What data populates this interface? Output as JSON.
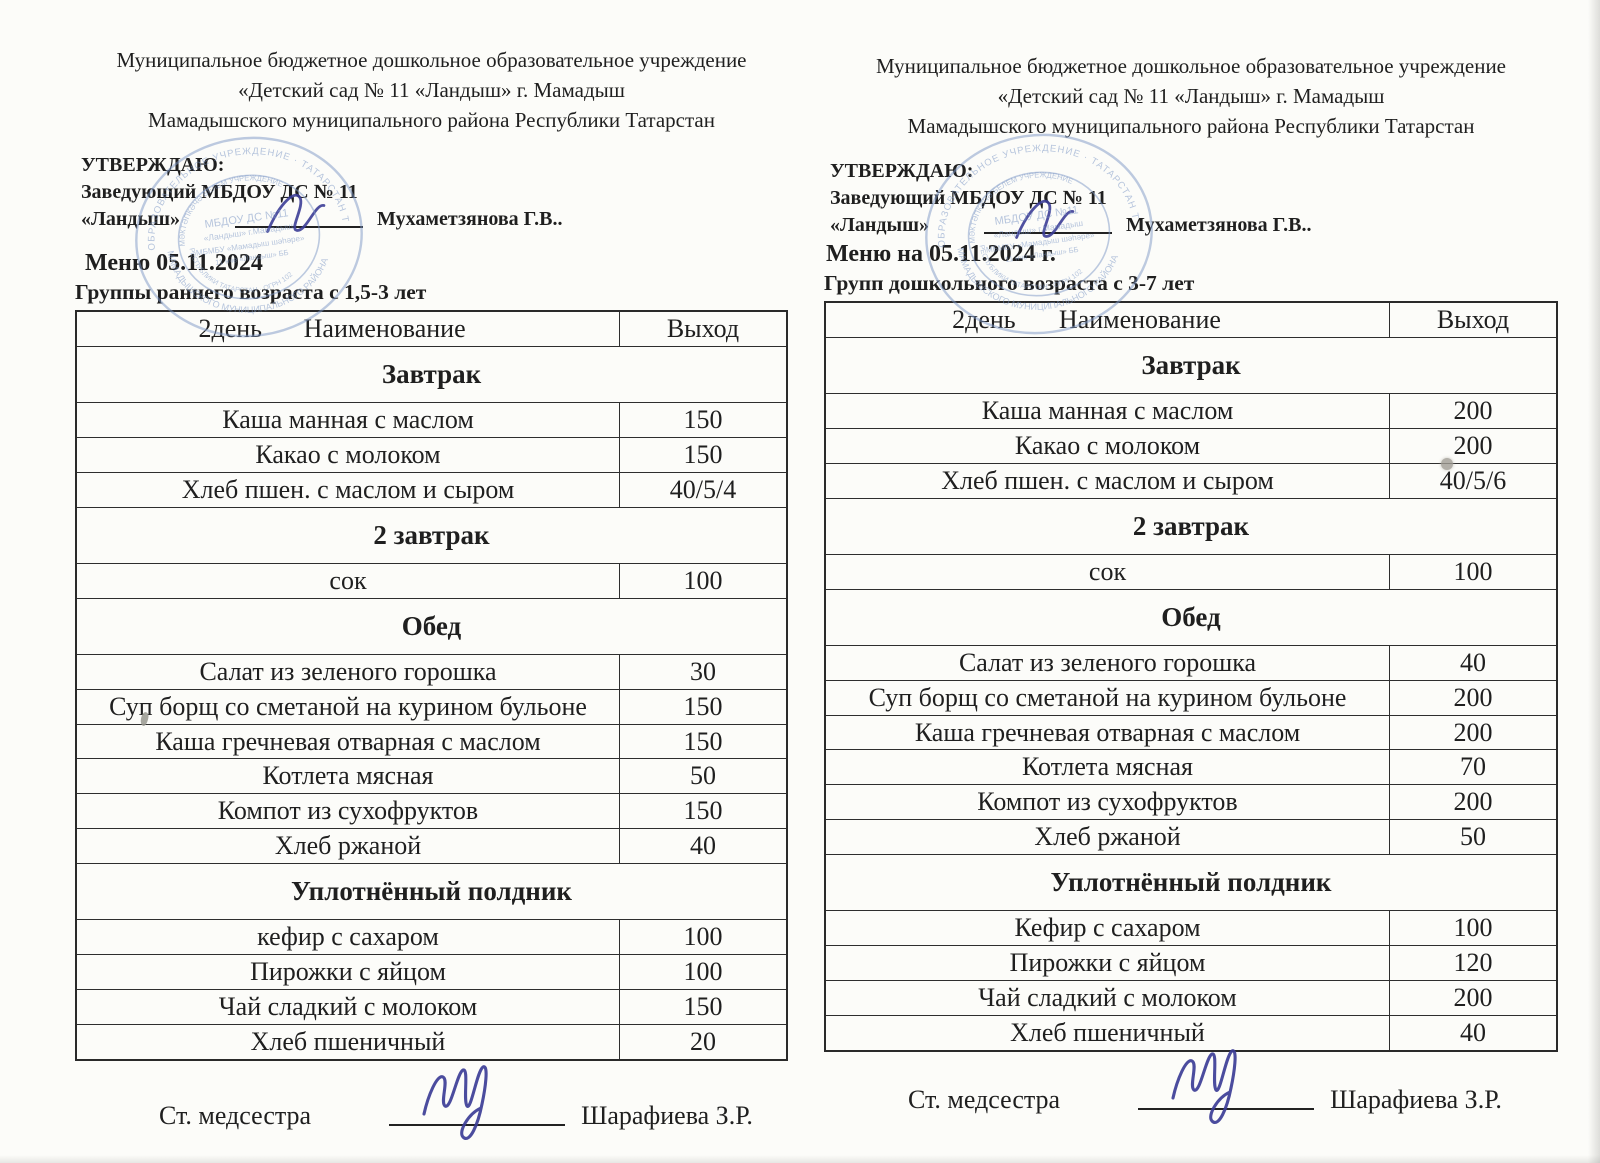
{
  "colors": {
    "ink": "#1f1f1f",
    "table_border": "#2e2e2e",
    "stamp_blue": "#7d98c6",
    "pen_blue": "#3c3d96",
    "paper": "#fcfcf9"
  },
  "stamp": {
    "ring_top": "ОБРАЗОВАТЕЛЬНОЕ УЧРЕЖДЕНИЕ · ТАТАРСТАН ТАТАРСТАН",
    "ring_bottom": "МАМАДЫШСКОГО МУНИЦИПАЛЬНОГО РАЙОНА",
    "ring_inner_top": "МӘКТӘПКӘЧӘ БЕЛЕМ УЧРЕЖДЕНИЕ",
    "ring_inner_bottom": "РЕСПУБЛИКИ ТАТАРСТАН · ОГРН 102",
    "inner_line1": "МБДОУ ДС №11",
    "inner_line2": "«Ландыш» г.Мамадыш",
    "inner_line3": "МБМБУ «Мамадыш шәһәре»",
    "inner_line4": "11 нче «Ландыш» ББ"
  },
  "menus": [
    {
      "org_lines": [
        "Муниципальное бюджетное дошкольное образовательное учреждение",
        "«Детский сад № 11 «Ландыш» г. Мамадыш",
        "Мамадышского муниципального района Республики Татарстан"
      ],
      "approve": {
        "heading": "УТВЕРЖДАЮ:",
        "line2": "Заведующий МБДОУ ДС № 11",
        "quote": "«Ландыш»",
        "name": "Мухаметзянова Г.В.."
      },
      "title": "Меню 05.11.2024",
      "subtitle": "Группы  раннего возраста с 1,5-3 лет",
      "table": {
        "header_day": "2день",
        "header_name": "Наименование",
        "header_out": "Выход",
        "sections": [
          {
            "label": "Завтрак",
            "items": [
              {
                "dish": "Каша манная с маслом",
                "out": "150"
              },
              {
                "dish": "Какао с молоком",
                "out": "150"
              },
              {
                "dish": "Хлеб пшен. с маслом и сыром",
                "out": "40/5/4"
              }
            ]
          },
          {
            "label": "2 завтрак",
            "items": [
              {
                "dish": "сок",
                "out": "100"
              }
            ]
          },
          {
            "label": "Обед",
            "items": [
              {
                "dish": "Салат из зеленого горошка",
                "out": "30"
              },
              {
                "dish": "Суп  борщ со сметаной на курином бульоне",
                "out": "150"
              },
              {
                "dish": "Каша гречневая отварная с маслом",
                "out": "150"
              },
              {
                "dish": "Котлета мясная",
                "out": "50"
              },
              {
                "dish": "Компот из сухофруктов",
                "out": "150"
              },
              {
                "dish": "Хлеб ржаной",
                "out": "40"
              }
            ]
          },
          {
            "label": "Уплотнённый полдник",
            "items": [
              {
                "dish": "кефир с сахаром",
                "out": "100"
              },
              {
                "dish": "Пирожки  с яйцом",
                "out": "100"
              },
              {
                "dish": "Чай сладкий с молоком",
                "out": "150"
              },
              {
                "dish": "Хлеб пшеничный",
                "out": "20"
              }
            ]
          }
        ]
      },
      "signature": {
        "role": "Ст. медсестра",
        "name": "Шарафиева З.Р."
      }
    },
    {
      "org_lines": [
        "Муниципальное бюджетное дошкольное образовательное учреждение",
        "«Детский сад № 11 «Ландыш» г. Мамадыш",
        "Мамадышского муниципального района Республики Татарстан"
      ],
      "approve": {
        "heading": "УТВЕРЖДАЮ:",
        "line2": "Заведующий МБДОУ ДС № 11",
        "quote": "«Ландыш»",
        "name": "Мухаметзянова Г.В.."
      },
      "title": "Меню на 05.11.2024 г.",
      "subtitle": "Групп дошкольного возраста с 3-7 лет",
      "table": {
        "header_day": "2день",
        "header_name": "Наименование",
        "header_out": "Выход",
        "sections": [
          {
            "label": "Завтрак",
            "items": [
              {
                "dish": "Каша манная с маслом",
                "out": "200"
              },
              {
                "dish": "Какао с молоком",
                "out": "200"
              },
              {
                "dish": "Хлеб пшен. с маслом и сыром",
                "out": "40/5/6"
              }
            ]
          },
          {
            "label": "2 завтрак",
            "items": [
              {
                "dish": "сок",
                "out": "100"
              }
            ]
          },
          {
            "label": "Обед",
            "items": [
              {
                "dish": "Салат из зеленого  горошка",
                "out": "40"
              },
              {
                "dish": "Суп борщ со сметаной на курином бульоне",
                "out": "200"
              },
              {
                "dish": "Каша гречневая отварная с маслом",
                "out": "200"
              },
              {
                "dish": "Котлета мясная",
                "out": "70"
              },
              {
                "dish": "Компот из сухофруктов",
                "out": "200"
              },
              {
                "dish": "Хлеб ржаной",
                "out": "50"
              }
            ]
          },
          {
            "label": "Уплотнённый полдник",
            "items": [
              {
                "dish": "Кефир с сахаром",
                "out": "100"
              },
              {
                "dish": "Пирожки с яйцом",
                "out": "120"
              },
              {
                "dish": "Чай сладкий с молоком",
                "out": "200"
              },
              {
                "dish": "Хлеб пшеничный",
                "out": "40"
              }
            ]
          }
        ]
      },
      "signature": {
        "role": "Ст. медсестра",
        "name": "Шарафиева З.Р."
      }
    }
  ]
}
